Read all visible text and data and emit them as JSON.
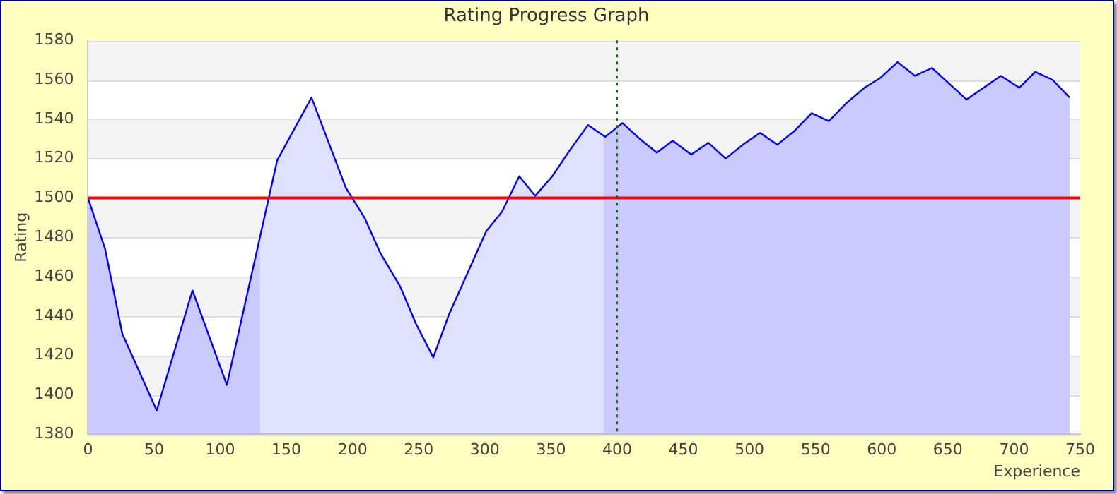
{
  "chart_data": {
    "type": "area",
    "title": "Rating Progress Graph",
    "xlabel": "Experience",
    "ylabel": "Rating",
    "x": [
      0,
      13,
      26,
      52,
      79,
      105,
      143,
      169,
      195,
      209,
      221,
      236,
      248,
      261,
      273,
      287,
      301,
      313,
      326,
      338,
      351,
      364,
      378,
      391,
      404,
      417,
      430,
      442,
      456,
      469,
      482,
      495,
      508,
      521,
      534,
      547,
      560,
      573,
      587,
      599,
      612,
      625,
      638,
      651,
      664,
      677,
      690,
      704,
      716,
      729,
      742
    ],
    "series": [
      {
        "color": "#0000ff",
        "values": [
          1500,
          1474,
          1431,
          1392,
          1453,
          1405,
          1519,
          1551,
          1505,
          1490,
          1472,
          1455,
          1436,
          1419,
          1441,
          1462,
          1483,
          1493,
          1511,
          1501,
          1511,
          1524,
          1537,
          1531,
          1538,
          1530,
          1523,
          1529,
          1522,
          1528,
          1520,
          1527,
          1533,
          1527,
          1534,
          1543,
          1539,
          1548,
          1556,
          1561,
          1569,
          1562,
          1566,
          1558,
          1550,
          1556,
          1562,
          1556,
          1564,
          1560,
          1551
        ]
      }
    ],
    "xlim": [
      0,
      750
    ],
    "ylim": [
      1380,
      1580
    ],
    "xticks": [
      0,
      50,
      100,
      150,
      200,
      250,
      300,
      350,
      400,
      450,
      500,
      550,
      600,
      650,
      700,
      750
    ],
    "yticks": [
      1380,
      1400,
      1420,
      1440,
      1460,
      1480,
      1500,
      1520,
      1540,
      1560,
      1580
    ],
    "grid": "y",
    "legend": false,
    "bands": [
      {
        "axis": "x",
        "from": 0,
        "to": 130,
        "color": "#e6e6ff"
      },
      {
        "axis": "x",
        "from": 390,
        "to": 742,
        "color": "#e6e6ff"
      }
    ],
    "ref_lines": [
      {
        "axis": "y",
        "value": 1500,
        "color": "#ff0000",
        "line_style": "solid"
      },
      {
        "axis": "x",
        "value": 400,
        "color": "#007000",
        "line_style": "dotted"
      }
    ]
  }
}
